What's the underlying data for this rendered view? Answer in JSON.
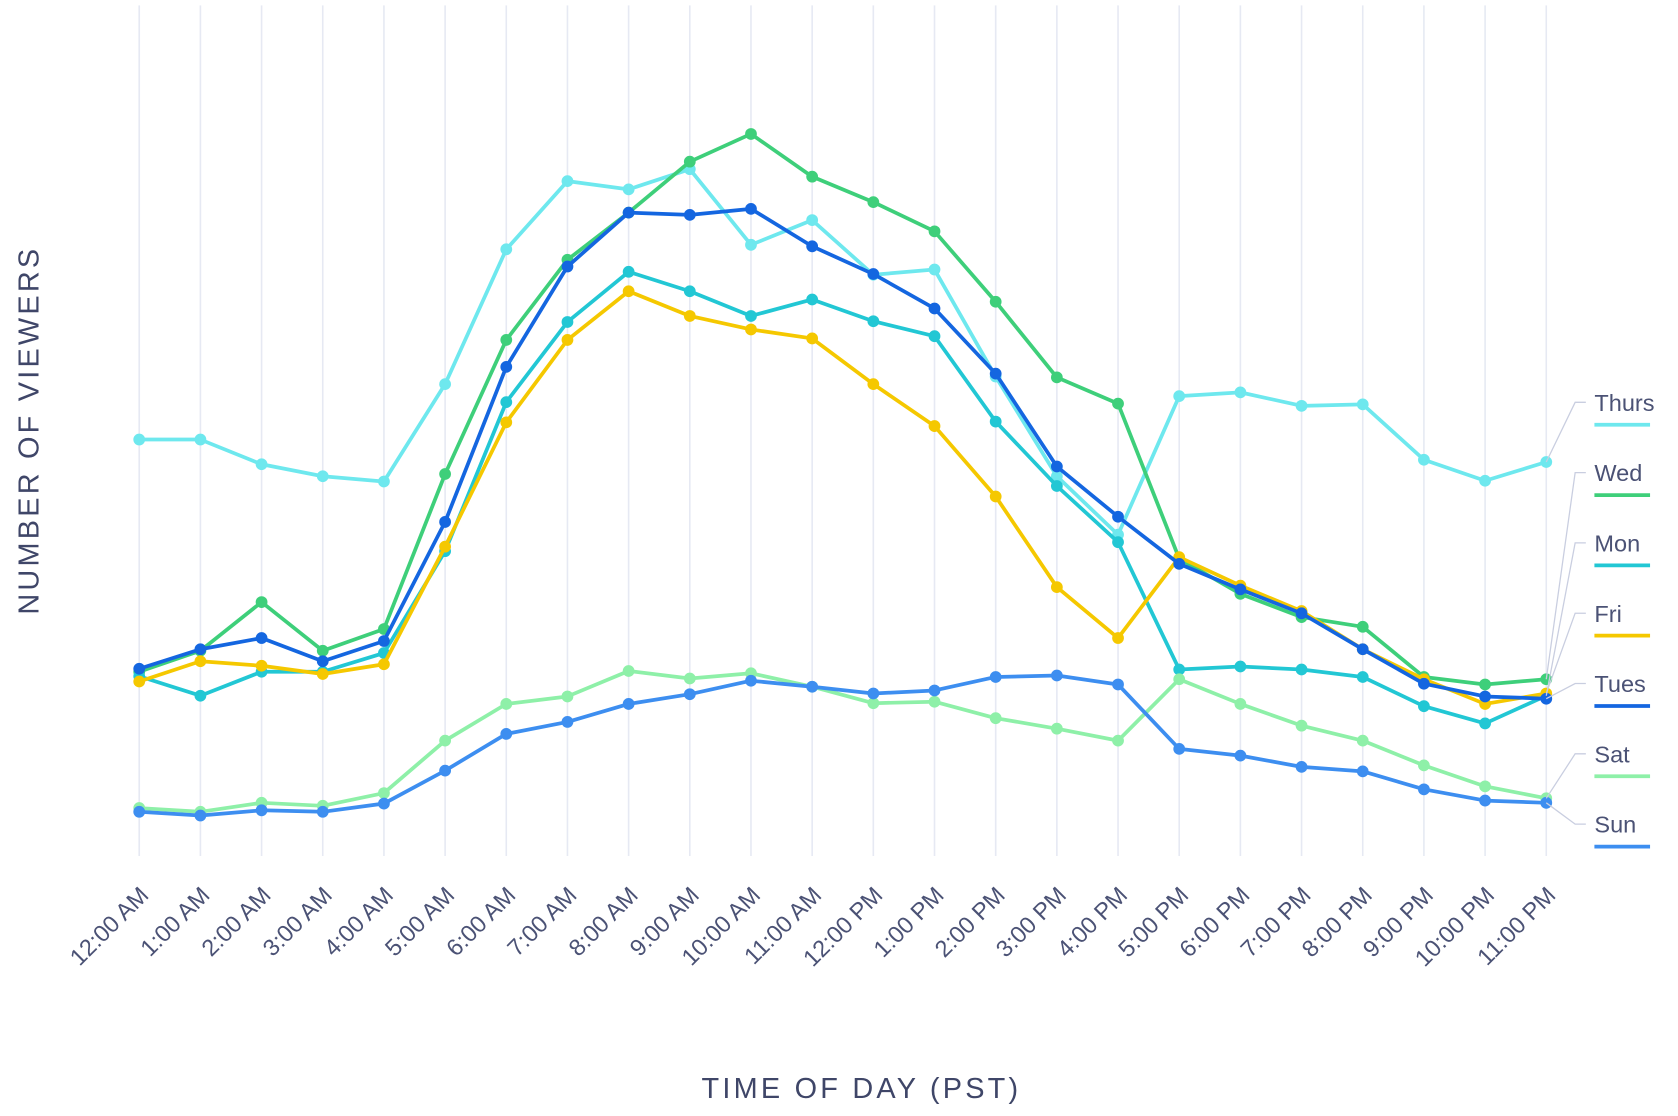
{
  "chart_data": {
    "type": "line",
    "x_label": "TIME OF DAY (PST)",
    "y_label": "NUMBER OF VIEWERS",
    "categories": [
      "12:00 AM",
      "1:00 AM",
      "2:00 AM",
      "3:00 AM",
      "4:00 AM",
      "5:00 AM",
      "6:00 AM",
      "7:00 AM",
      "8:00 AM",
      "9:00 AM",
      "10:00 AM",
      "11:00 AM",
      "12:00 PM",
      "1:00 PM",
      "2:00 PM",
      "3:00 PM",
      "4:00 PM",
      "5:00 PM",
      "6:00 PM",
      "7:00 PM",
      "8:00 PM",
      "9:00 PM",
      "10:00 PM",
      "11:00 PM"
    ],
    "ylim": [
      0,
      100
    ],
    "legend": "right",
    "series": [
      {
        "name": "Thurs",
        "color": "#6ee8ee",
        "values": [
          55.6,
          55.6,
          52.3,
          50.7,
          50,
          63,
          81,
          90.1,
          89,
          91.7,
          81.6,
          84.9,
          77.6,
          78.3,
          64,
          50.7,
          42.9,
          61.4,
          61.9,
          60.1,
          60.3,
          52.9,
          50.1,
          52.6
        ]
      },
      {
        "name": "Wed",
        "color": "#3ecf7a",
        "values": [
          24.6,
          27.4,
          33.9,
          27.4,
          30.3,
          51,
          68.9,
          79.6,
          85.9,
          92.7,
          96.4,
          90.7,
          87.3,
          83.4,
          74,
          63.9,
          60.4,
          39.7,
          35,
          31.9,
          30.6,
          23.9,
          22.9,
          23.6
        ]
      },
      {
        "name": "Mon",
        "color": "#22c7d4",
        "values": [
          24,
          21.4,
          24.6,
          24.6,
          27.1,
          40.7,
          60.6,
          71.3,
          78,
          75.4,
          72.1,
          74.3,
          71.4,
          69.4,
          58,
          49.4,
          41.9,
          24.9,
          25.3,
          24.9,
          23.9,
          20,
          17.7,
          21.4
        ]
      },
      {
        "name": "Fri",
        "color": "#f5c800",
        "values": [
          23.3,
          26,
          25.4,
          24.3,
          25.6,
          41.3,
          57.9,
          68.9,
          75.4,
          72.1,
          70.3,
          69.1,
          63,
          57.4,
          48,
          35.9,
          29.1,
          39.9,
          36.1,
          32.7,
          27.6,
          23.6,
          20.3,
          21.7
        ]
      },
      {
        "name": "Tues",
        "color": "#1466e0",
        "values": [
          25,
          27.6,
          29.1,
          26,
          28.7,
          44.6,
          65.3,
          78.7,
          85.9,
          85.6,
          86.4,
          81.4,
          77.7,
          73.1,
          64.4,
          52,
          45.3,
          39,
          35.6,
          32.4,
          27.6,
          23,
          21.3,
          21
        ]
      },
      {
        "name": "Sat",
        "color": "#8ef0a8",
        "values": [
          6.4,
          5.9,
          7.1,
          6.7,
          8.4,
          15.4,
          20.3,
          21.3,
          24.7,
          23.7,
          24.4,
          22.6,
          20.4,
          20.6,
          18.4,
          17,
          15.4,
          23.6,
          20.3,
          17.4,
          15.4,
          12.1,
          9.3,
          7.7
        ]
      },
      {
        "name": "Sun",
        "color": "#3d8ef0",
        "values": [
          5.9,
          5.4,
          6.1,
          5.9,
          7,
          11.4,
          16.3,
          17.9,
          20.3,
          21.6,
          23.4,
          22.6,
          21.7,
          22.1,
          23.9,
          24.1,
          22.9,
          14.3,
          13.4,
          11.9,
          11.3,
          8.9,
          7.4,
          7.1
        ]
      }
    ]
  }
}
